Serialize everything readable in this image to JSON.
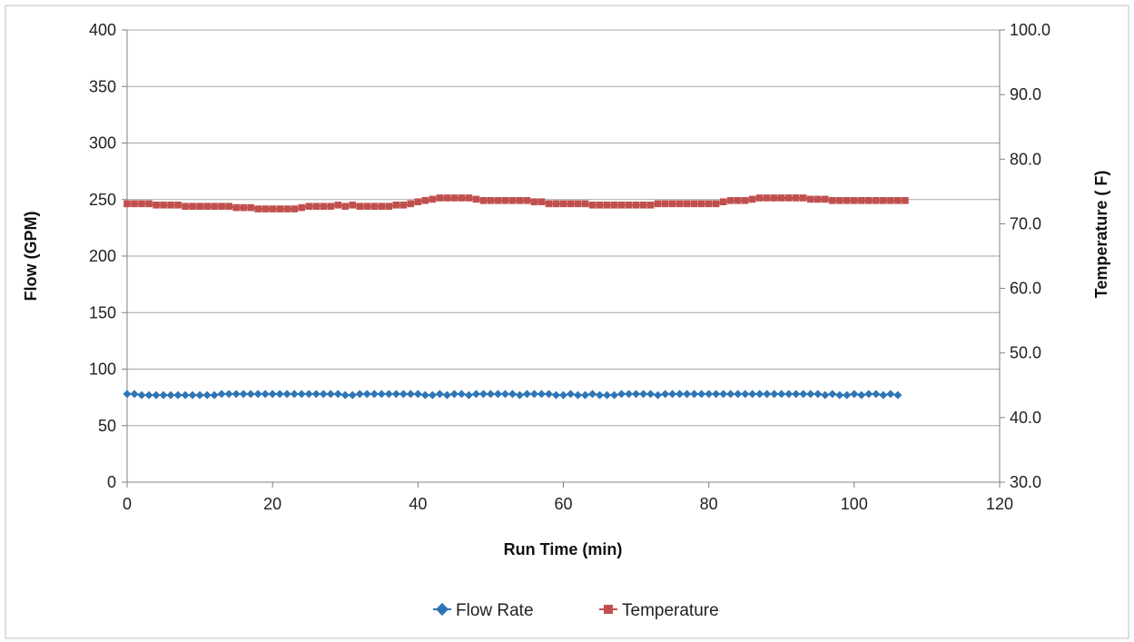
{
  "chart_data": {
    "type": "line",
    "title": "",
    "xlabel": "Run Time (min)",
    "ylabel": "Flow (GPM)",
    "y2label": "Temperature ( F)",
    "xlim": [
      0,
      120
    ],
    "ylim": [
      0,
      400
    ],
    "y2lim": [
      30,
      100
    ],
    "x_ticks": [
      "0",
      "20",
      "40",
      "60",
      "80",
      "100",
      "120"
    ],
    "y_ticks": [
      "0",
      "50",
      "100",
      "150",
      "200",
      "250",
      "300",
      "350",
      "400"
    ],
    "y2_ticks": [
      "30.0",
      "40.0",
      "50.0",
      "60.0",
      "70.0",
      "80.0",
      "90.0",
      "100.0"
    ],
    "grid": "horizontal",
    "legend_position": "bottom",
    "colors": {
      "flow": "#2E75B6",
      "temperature": "#C0504D",
      "grid": "#A6A6A6",
      "axis": "#808080"
    },
    "series": [
      {
        "name": "Flow Rate",
        "axis": "left",
        "marker": "diamond",
        "color": "#2E75B6",
        "x": [
          0,
          1,
          2,
          3,
          4,
          5,
          6,
          7,
          8,
          9,
          10,
          11,
          12,
          13,
          14,
          15,
          16,
          17,
          18,
          19,
          20,
          21,
          22,
          23,
          24,
          25,
          26,
          27,
          28,
          29,
          30,
          31,
          32,
          33,
          34,
          35,
          36,
          37,
          38,
          39,
          40,
          41,
          42,
          43,
          44,
          45,
          46,
          47,
          48,
          49,
          50,
          51,
          52,
          53,
          54,
          55,
          56,
          57,
          58,
          59,
          60,
          61,
          62,
          63,
          64,
          65,
          66,
          67,
          68,
          69,
          70,
          71,
          72,
          73,
          74,
          75,
          76,
          77,
          78,
          79,
          80,
          81,
          82,
          83,
          84,
          85,
          86,
          87,
          88,
          89,
          90,
          91,
          92,
          93,
          94,
          95,
          96,
          97,
          98,
          99,
          100,
          101,
          102,
          103,
          104,
          105,
          106
        ],
        "y": [
          78,
          78,
          77,
          77,
          77,
          77,
          77,
          77,
          77,
          77,
          77,
          77,
          77,
          78,
          78,
          78,
          78,
          78,
          78,
          78,
          78,
          78,
          78,
          78,
          78,
          78,
          78,
          78,
          78,
          78,
          77,
          77,
          78,
          78,
          78,
          78,
          78,
          78,
          78,
          78,
          78,
          77,
          77,
          78,
          77,
          78,
          78,
          77,
          78,
          78,
          78,
          78,
          78,
          78,
          77,
          78,
          78,
          78,
          78,
          77,
          77,
          78,
          77,
          77,
          78,
          77,
          77,
          77,
          78,
          78,
          78,
          78,
          78,
          77,
          78,
          78,
          78,
          78,
          78,
          78,
          78,
          78,
          78,
          78,
          78,
          78,
          78,
          78,
          78,
          78,
          78,
          78,
          78,
          78,
          78,
          78,
          77,
          78,
          77,
          77,
          78,
          77,
          78,
          78,
          77,
          78,
          77
        ]
      },
      {
        "name": "Temperature",
        "axis": "right",
        "marker": "square",
        "color": "#C0504D",
        "x": [
          0,
          1,
          2,
          3,
          4,
          5,
          6,
          7,
          8,
          9,
          10,
          11,
          12,
          13,
          14,
          15,
          16,
          17,
          18,
          19,
          20,
          21,
          22,
          23,
          24,
          25,
          26,
          27,
          28,
          29,
          30,
          31,
          32,
          33,
          34,
          35,
          36,
          37,
          38,
          39,
          40,
          41,
          42,
          43,
          44,
          45,
          46,
          47,
          48,
          49,
          50,
          51,
          52,
          53,
          54,
          55,
          56,
          57,
          58,
          59,
          60,
          61,
          62,
          63,
          64,
          65,
          66,
          67,
          68,
          69,
          70,
          71,
          72,
          73,
          74,
          75,
          76,
          77,
          78,
          79,
          80,
          81,
          82,
          83,
          84,
          85,
          86,
          87,
          88,
          89,
          90,
          91,
          92,
          93,
          94,
          95,
          96,
          97,
          98,
          99,
          100,
          101,
          102,
          103,
          104,
          105,
          106,
          107
        ],
        "y": [
          73.1,
          73.1,
          73.1,
          73.1,
          72.9,
          72.9,
          72.9,
          72.9,
          72.7,
          72.7,
          72.7,
          72.7,
          72.7,
          72.7,
          72.7,
          72.5,
          72.5,
          72.5,
          72.3,
          72.3,
          72.3,
          72.3,
          72.3,
          72.3,
          72.5,
          72.7,
          72.7,
          72.7,
          72.7,
          72.9,
          72.7,
          72.9,
          72.7,
          72.7,
          72.7,
          72.7,
          72.7,
          72.9,
          72.9,
          73.1,
          73.4,
          73.6,
          73.8,
          74.0,
          74.0,
          74.0,
          74.0,
          74.0,
          73.8,
          73.6,
          73.6,
          73.6,
          73.6,
          73.6,
          73.6,
          73.6,
          73.4,
          73.4,
          73.1,
          73.1,
          73.1,
          73.1,
          73.1,
          73.1,
          72.9,
          72.9,
          72.9,
          72.9,
          72.9,
          72.9,
          72.9,
          72.9,
          72.9,
          73.1,
          73.1,
          73.1,
          73.1,
          73.1,
          73.1,
          73.1,
          73.1,
          73.1,
          73.4,
          73.6,
          73.6,
          73.6,
          73.8,
          74.0,
          74.0,
          74.0,
          74.0,
          74.0,
          74.0,
          74.0,
          73.8,
          73.8,
          73.8,
          73.6,
          73.6,
          73.6,
          73.6,
          73.6,
          73.6,
          73.6,
          73.6,
          73.6,
          73.6,
          73.6
        ]
      }
    ]
  }
}
